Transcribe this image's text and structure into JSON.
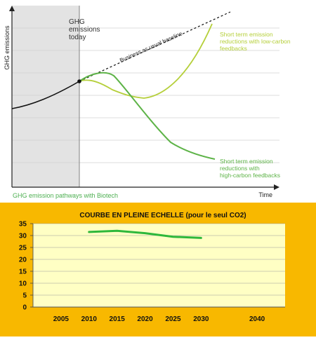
{
  "colors": {
    "light_green": "#b5cf3a",
    "dark_green": "#5db347",
    "caption_green": "#4caf50",
    "shade": "#e3e3e3",
    "panel_orange": "#f8b800",
    "plot_yellow": "#ffffc4",
    "co2_line": "#2eb83b"
  },
  "chart_data": [
    {
      "type": "line",
      "title": "",
      "xlabel": "Time",
      "ylabel": "GHG emissions",
      "caption": "GHG emission pathways with Biotech",
      "grid": true,
      "annotations": {
        "today": [
          "GHG",
          "emissions",
          "today"
        ],
        "baseline": "Business as usual baseline",
        "low_carbon": [
          "Short term emission",
          "reductions with low-carbon",
          "feedbacks"
        ],
        "high_carbon": [
          "Short term emission",
          "reductions with",
          "high-carbon feedbacks"
        ]
      },
      "series": []
    },
    {
      "type": "line",
      "title": "COURBE EN PLEINE ECHELLE (pour le seul CO2)",
      "categories": [
        "2005",
        "2010",
        "2015",
        "2020",
        "2025",
        "2030",
        "2040"
      ],
      "yticks": [
        "0",
        "5",
        "10",
        "15",
        "20",
        "25",
        "30",
        "35"
      ],
      "ylim": [
        0,
        35
      ],
      "xlim": [
        2000,
        2045
      ],
      "grid": true,
      "series": [
        {
          "x": [
            2010,
            2015,
            2020,
            2025,
            2030
          ],
          "values": [
            31.5,
            32,
            31,
            29.5,
            29
          ]
        }
      ]
    }
  ]
}
